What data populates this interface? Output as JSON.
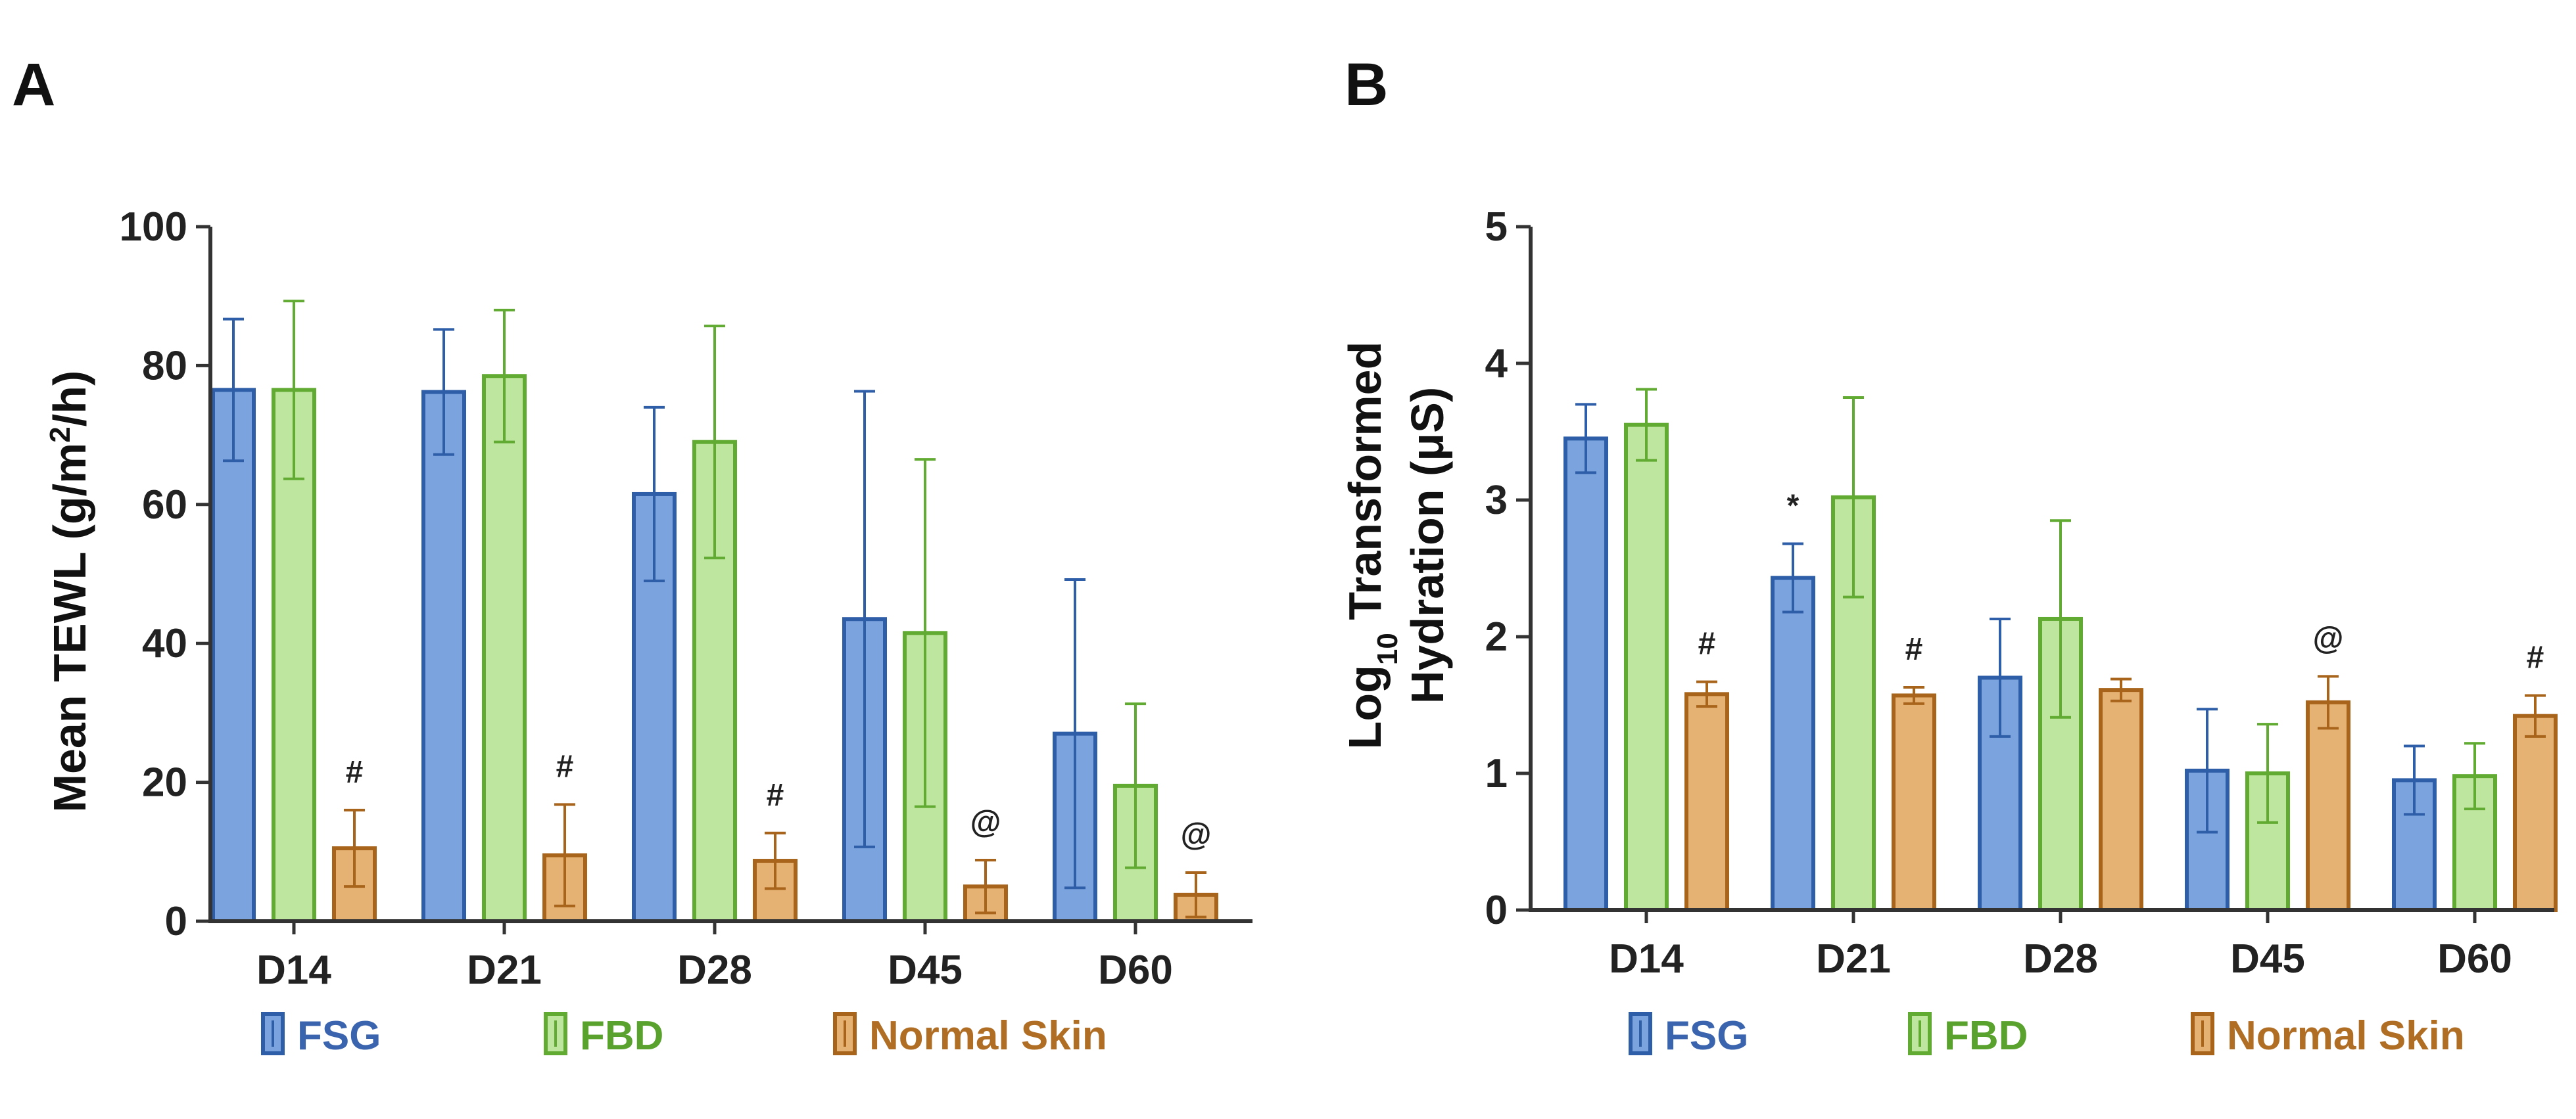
{
  "chart_data": [
    {
      "panel": "A",
      "type": "bar",
      "title": "",
      "xlabel": "",
      "ylabel_parts": [
        "Mean TEWL (g/m",
        "2",
        "/h)"
      ],
      "ylim": [
        0,
        100
      ],
      "yticks": [
        0,
        20,
        40,
        60,
        80,
        100
      ],
      "grid": false,
      "categories": [
        "D14",
        "D21",
        "D28",
        "D45",
        "D60"
      ],
      "series": [
        {
          "name": "FSG",
          "values": [
            76.5,
            76.2,
            61.5,
            43.5,
            27.0
          ],
          "errors": [
            10.2,
            9.0,
            12.5,
            32.8,
            22.2
          ]
        },
        {
          "name": "FBD",
          "values": [
            76.5,
            78.5,
            69.0,
            41.5,
            19.5
          ],
          "errors": [
            12.8,
            9.5,
            16.7,
            25.0,
            11.8
          ]
        },
        {
          "name": "Normal Skin",
          "values": [
            10.5,
            9.5,
            8.7,
            5.0,
            3.8
          ],
          "errors": [
            5.5,
            7.3,
            4.0,
            3.8,
            3.2
          ]
        }
      ],
      "annotations": [
        {
          "category": "D14",
          "series": "Normal Skin",
          "text": "#"
        },
        {
          "category": "D21",
          "series": "Normal Skin",
          "text": "#"
        },
        {
          "category": "D28",
          "series": "Normal Skin",
          "text": "#"
        },
        {
          "category": "D45",
          "series": "Normal Skin",
          "text": "@"
        },
        {
          "category": "D60",
          "series": "Normal Skin",
          "text": "@"
        }
      ],
      "legend": {
        "position": "bottom",
        "entries": [
          "FSG",
          "FBD",
          "Normal Skin"
        ]
      }
    },
    {
      "panel": "B",
      "type": "bar",
      "title": "",
      "xlabel": "",
      "ylabel_line1_parts": [
        "Log",
        "10",
        " Transformed"
      ],
      "ylabel_line2": "Hydration (μS)",
      "ylim": [
        0,
        5
      ],
      "yticks": [
        0,
        1,
        2,
        3,
        4,
        5
      ],
      "grid": false,
      "categories": [
        "D14",
        "D21",
        "D28",
        "D45",
        "D60"
      ],
      "series": [
        {
          "name": "FSG",
          "values": [
            3.45,
            2.43,
            1.7,
            1.02,
            0.95
          ],
          "errors": [
            0.25,
            0.25,
            0.43,
            0.45,
            0.25
          ]
        },
        {
          "name": "FBD",
          "values": [
            3.55,
            3.02,
            2.13,
            1.0,
            0.98
          ],
          "errors": [
            0.26,
            0.73,
            0.72,
            0.36,
            0.24
          ]
        },
        {
          "name": "Normal Skin",
          "values": [
            1.58,
            1.57,
            1.61,
            1.52,
            1.42
          ],
          "errors": [
            0.09,
            0.06,
            0.08,
            0.19,
            0.15
          ]
        }
      ],
      "annotations": [
        {
          "category": "D14",
          "series": "Normal Skin",
          "text": "#"
        },
        {
          "category": "D21",
          "series": "FSG",
          "text": "*"
        },
        {
          "category": "D21",
          "series": "Normal Skin",
          "text": "#"
        },
        {
          "category": "D45",
          "series": "Normal Skin",
          "text": "@"
        },
        {
          "category": "D60",
          "series": "Normal Skin",
          "text": "#"
        }
      ],
      "legend": {
        "position": "bottom",
        "entries": [
          "FSG",
          "FBD",
          "Normal Skin"
        ]
      }
    }
  ],
  "colors": {
    "FSG": {
      "fill": "#7ba3de",
      "stroke": "#2f5ea8",
      "label": "#3a64ad"
    },
    "FBD": {
      "fill": "#bfe69e",
      "stroke": "#62ab33",
      "label": "#5aa22e"
    },
    "Normal Skin": {
      "fill": "#e6b274",
      "stroke": "#a8641a",
      "label": "#b06e25"
    },
    "axis": "#333333"
  }
}
